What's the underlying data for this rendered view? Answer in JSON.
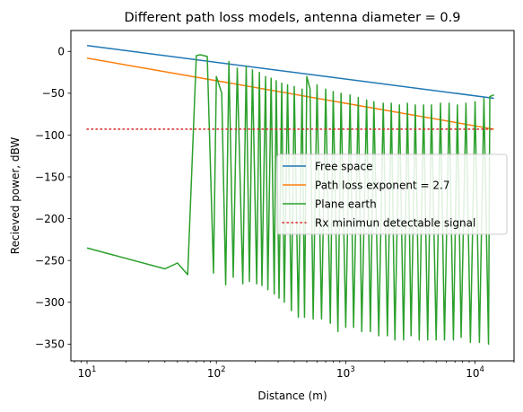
{
  "chart_data": {
    "type": "line",
    "title": "Different path loss models, antenna diameter = 0.9",
    "xlabel": "Distance (m)",
    "ylabel": "Recieved power, dBW",
    "xscale": "log",
    "xlim": [
      7.5,
      20000
    ],
    "ylim": [
      -370,
      25
    ],
    "x_ticks": [
      {
        "value": 10,
        "base": "10",
        "exp": "1"
      },
      {
        "value": 100,
        "base": "10",
        "exp": "2"
      },
      {
        "value": 1000,
        "base": "10",
        "exp": "3"
      },
      {
        "value": 10000,
        "base": "10",
        "exp": "4"
      }
    ],
    "y_ticks": [
      0,
      -50,
      -100,
      -150,
      -200,
      -250,
      -300,
      -350
    ],
    "grid": false,
    "legend_position": "center-right",
    "series": [
      {
        "name": "Free space",
        "color": "#1f77b4",
        "style": "solid",
        "x": [
          10,
          14000
        ],
        "y": [
          7,
          -56
        ]
      },
      {
        "name": "Path loss exponent = 2.7",
        "color": "#ff7f0e",
        "style": "solid",
        "x": [
          10,
          14000
        ],
        "y": [
          -8,
          -93
        ]
      },
      {
        "name": "Plane earth",
        "color": "#2ca02c",
        "style": "solid",
        "x": [
          10,
          40,
          50,
          60,
          70,
          75,
          85,
          95,
          100,
          110,
          118,
          125,
          135,
          145,
          160,
          170,
          180,
          190,
          205,
          215,
          225,
          240,
          250,
          265,
          280,
          290,
          305,
          320,
          335,
          355,
          380,
          400,
          430,
          460,
          480,
          500,
          530,
          560,
          600,
          650,
          700,
          760,
          800,
          870,
          920,
          1000,
          1080,
          1150,
          1250,
          1330,
          1450,
          1550,
          1650,
          1800,
          1950,
          2100,
          2250,
          2400,
          2600,
          2800,
          3000,
          3200,
          3450,
          3700,
          4000,
          4300,
          4600,
          5000,
          5400,
          5800,
          6300,
          6800,
          7300,
          7800,
          8500,
          9200,
          10000,
          10800,
          11700,
          12700,
          13000,
          14000
        ],
        "y": [
          -235,
          -260,
          -253,
          -267,
          -5,
          -4,
          -6,
          -265,
          -30,
          -50,
          -279,
          -12,
          -270,
          -20,
          -278,
          -18,
          -275,
          -22,
          -278,
          -25,
          -280,
          -30,
          -285,
          -32,
          -290,
          -35,
          -295,
          -38,
          -300,
          -40,
          -310,
          -42,
          -318,
          -45,
          -318,
          -30,
          -45,
          -320,
          -40,
          -320,
          -45,
          -325,
          -48,
          -335,
          -50,
          -330,
          -52,
          -330,
          -55,
          -335,
          -58,
          -335,
          -60,
          -340,
          -62,
          -340,
          -62,
          -345,
          -64,
          -345,
          -62,
          -340,
          -64,
          -345,
          -64,
          -345,
          -64,
          -345,
          -62,
          -345,
          -62,
          -345,
          -64,
          -342,
          -62,
          -348,
          -60,
          -348,
          -56,
          -350,
          -54,
          -52
        ]
      },
      {
        "name": "Rx minimun detectable signal",
        "color": "#d62728",
        "style": "dotted",
        "x": [
          10,
          14000
        ],
        "y": [
          -93,
          -93
        ]
      }
    ]
  }
}
